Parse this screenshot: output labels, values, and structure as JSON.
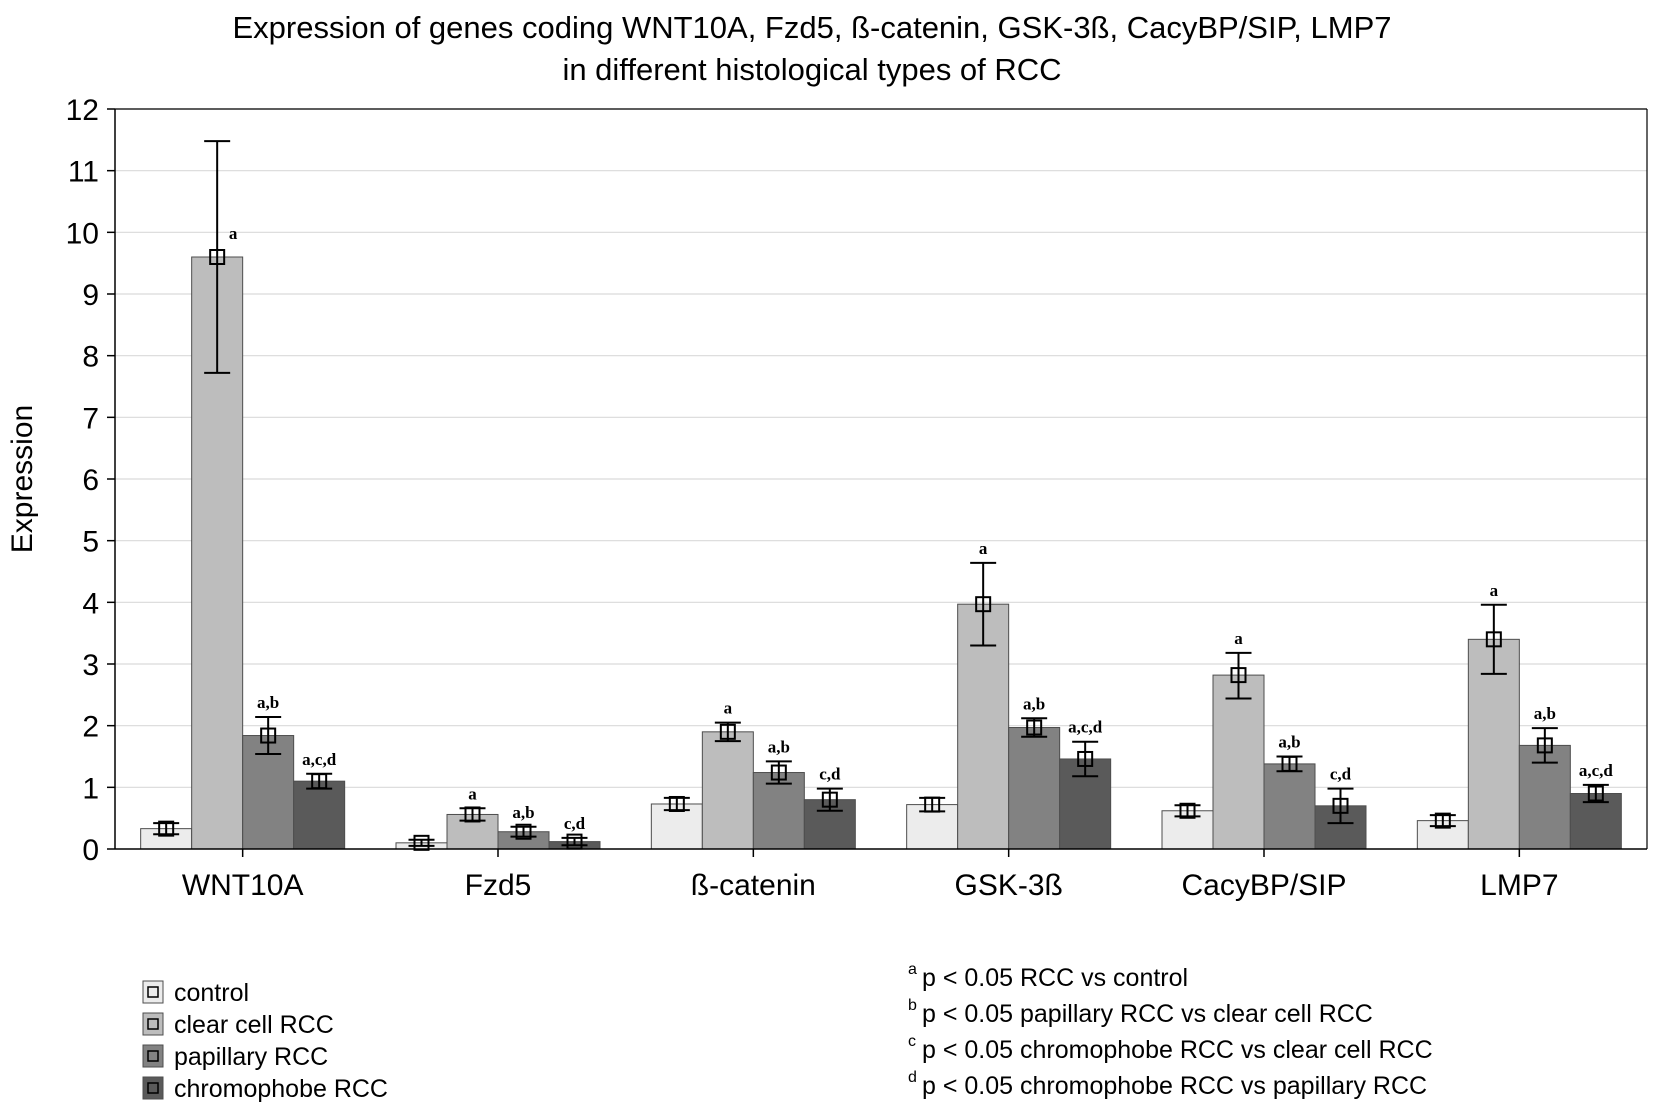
{
  "chart_data": {
    "type": "bar",
    "title": [
      "Expression of genes coding WNT10A, Fzd5, ß-catenin, GSK-3ß, CacyBP/SIP, LMP7",
      "in different histological types of RCC"
    ],
    "xlabel": "",
    "ylabel": "Expression",
    "ylim": [
      0,
      12
    ],
    "yticks": [
      0,
      1,
      2,
      3,
      4,
      5,
      6,
      7,
      8,
      9,
      10,
      11,
      12
    ],
    "grid": true,
    "categories": [
      "WNT10A",
      "Fzd5",
      "ß-catenin",
      "GSK-3ß",
      "CacyBP/SIP",
      "LMP7"
    ],
    "series": [
      {
        "name": "control",
        "color": "#ececec",
        "values": [
          0.33,
          0.1,
          0.73,
          0.72,
          0.62,
          0.46
        ],
        "error": [
          [
            0.24,
            0.42
          ],
          [
            0.05,
            0.15
          ],
          [
            0.63,
            0.83
          ],
          [
            0.61,
            0.83
          ],
          [
            0.53,
            0.71
          ],
          [
            0.37,
            0.55
          ]
        ],
        "labels": [
          "",
          "",
          "",
          "",
          "",
          ""
        ]
      },
      {
        "name": "clear cell RCC",
        "color": "#bdbdbd",
        "values": [
          9.6,
          0.56,
          1.9,
          3.97,
          2.82,
          3.4
        ],
        "error": [
          [
            7.72,
            11.48
          ],
          [
            0.46,
            0.66
          ],
          [
            1.75,
            2.05
          ],
          [
            3.3,
            4.64
          ],
          [
            2.44,
            3.18
          ],
          [
            2.84,
            3.96
          ]
        ],
        "labels": [
          "a",
          "a",
          "a",
          "a",
          "a",
          "a"
        ]
      },
      {
        "name": "papillary RCC",
        "color": "#828282",
        "values": [
          1.84,
          0.28,
          1.24,
          1.97,
          1.38,
          1.68
        ],
        "error": [
          [
            1.54,
            2.14
          ],
          [
            0.2,
            0.36
          ],
          [
            1.06,
            1.42
          ],
          [
            1.82,
            2.12
          ],
          [
            1.26,
            1.5
          ],
          [
            1.4,
            1.96
          ]
        ],
        "labels": [
          "a,b",
          "a,b",
          "a,b",
          "a,b",
          "a,b",
          "a,b"
        ]
      },
      {
        "name": "chromophobe RCC",
        "color": "#5a5a5a",
        "values": [
          1.1,
          0.12,
          0.8,
          1.46,
          0.7,
          0.9
        ],
        "error": [
          [
            0.98,
            1.22
          ],
          [
            0.06,
            0.18
          ],
          [
            0.62,
            0.98
          ],
          [
            1.18,
            1.74
          ],
          [
            0.42,
            0.98
          ],
          [
            0.76,
            1.04
          ]
        ],
        "labels": [
          "a,c,d",
          "c,d",
          "c,d",
          "a,c,d",
          "c,d",
          "a,c,d"
        ]
      }
    ],
    "legend": {
      "placement": "bottom-left",
      "items": [
        "control",
        "clear cell RCC",
        "papillary RCC",
        "chromophobe RCC"
      ]
    },
    "footnotes": [
      {
        "sup": "a",
        "text": "p < 0.05 RCC vs control"
      },
      {
        "sup": "b",
        "text": "p < 0.05 papillary RCC vs clear cell RCC"
      },
      {
        "sup": "c",
        "text": "p < 0.05 chromophobe RCC vs clear cell RCC"
      },
      {
        "sup": "d",
        "text": "p < 0.05 chromophobe RCC vs papillary RCC"
      }
    ]
  }
}
